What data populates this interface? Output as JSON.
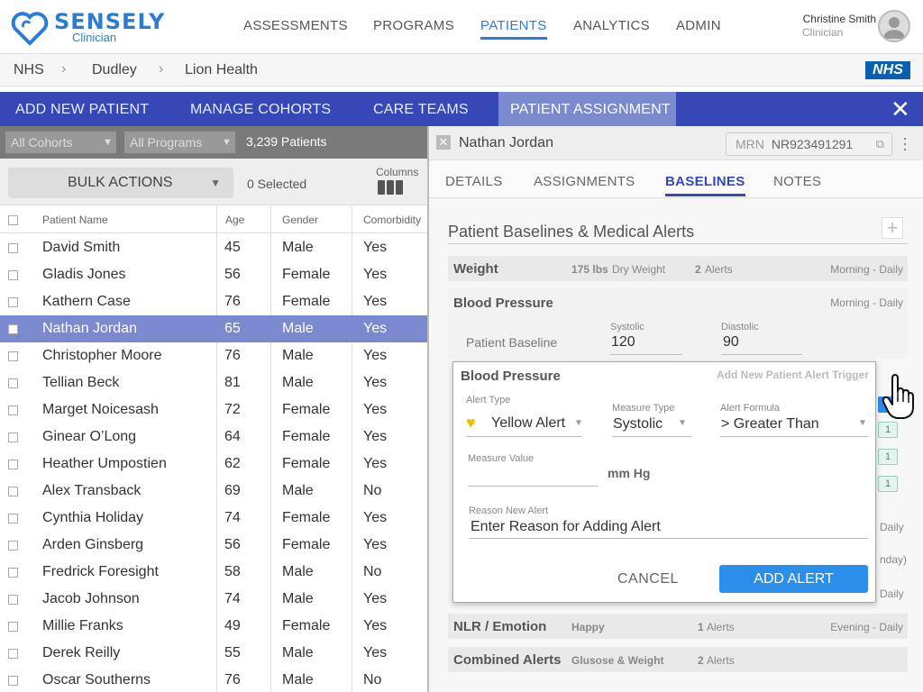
{
  "brand": {
    "name": "SENSELY",
    "sub": "Clinician",
    "color": "#2b7dd4"
  },
  "nav": {
    "items": [
      {
        "label": "ASSESSMENTS",
        "active": false
      },
      {
        "label": "PROGRAMS",
        "active": false
      },
      {
        "label": "PATIENTS",
        "active": true
      },
      {
        "label": "ANALYTICS",
        "active": false
      },
      {
        "label": "ADMIN",
        "active": false
      }
    ]
  },
  "user": {
    "name": "Christine Smith",
    "role": "Clinician"
  },
  "breadcrumb": [
    "NHS",
    "Dudley",
    "Lion Health"
  ],
  "nhs_logo": "NHS",
  "tabs": {
    "items": [
      "ADD NEW PATIENT",
      "MANAGE COHORTS",
      "CARE TEAMS",
      "PATIENT ASSIGNMENT"
    ],
    "active": "PATIENT ASSIGNMENT",
    "close_icon": "close-icon"
  },
  "filters": {
    "cohorts": "All Cohorts",
    "programs": "All Programs",
    "count": "3,239 Patients"
  },
  "bulk": {
    "label": "BULK ACTIONS",
    "selected": "0 Selected",
    "columns_label": "Columns"
  },
  "table": {
    "headers": [
      "Patient Name",
      "Age",
      "Gender",
      "Comorbidity"
    ],
    "rows": [
      {
        "name": "David Smith",
        "age": "45",
        "gender": "Male",
        "comorbidity": "Yes"
      },
      {
        "name": "Gladis Jones",
        "age": "56",
        "gender": "Female",
        "comorbidity": "Yes"
      },
      {
        "name": "Kathern Case",
        "age": "76",
        "gender": "Female",
        "comorbidity": "Yes"
      },
      {
        "name": "Nathan Jordan",
        "age": "65",
        "gender": "Male",
        "comorbidity": "Yes",
        "selected": true
      },
      {
        "name": "Christopher Moore",
        "age": "76",
        "gender": "Male",
        "comorbidity": "Yes"
      },
      {
        "name": "Tellian Beck",
        "age": "81",
        "gender": "Male",
        "comorbidity": "Yes"
      },
      {
        "name": "Marget Noicesash",
        "age": "72",
        "gender": "Female",
        "comorbidity": "Yes"
      },
      {
        "name": "Ginear O’Long",
        "age": "64",
        "gender": "Female",
        "comorbidity": "Yes"
      },
      {
        "name": "Heather Umpostien",
        "age": "62",
        "gender": "Female",
        "comorbidity": "Yes"
      },
      {
        "name": "Alex Transback",
        "age": "69",
        "gender": "Male",
        "comorbidity": "No"
      },
      {
        "name": "Cynthia Holiday",
        "age": "74",
        "gender": "Female",
        "comorbidity": "Yes"
      },
      {
        "name": "Arden Ginsberg",
        "age": "56",
        "gender": "Female",
        "comorbidity": "Yes"
      },
      {
        "name": "Fredrick Foresight",
        "age": "58",
        "gender": "Male",
        "comorbidity": "No"
      },
      {
        "name": "Jacob Johnson",
        "age": "74",
        "gender": "Male",
        "comorbidity": "Yes"
      },
      {
        "name": "Millie Franks",
        "age": "49",
        "gender": "Female",
        "comorbidity": "Yes"
      },
      {
        "name": "Derek Reilly",
        "age": "55",
        "gender": "Male",
        "comorbidity": "Yes"
      },
      {
        "name": "Oscar Southerns",
        "age": "76",
        "gender": "Male",
        "comorbidity": "No"
      }
    ]
  },
  "detail": {
    "name": "Nathan Jordan",
    "mrn_label": "MRN",
    "mrn": "NR923491291",
    "tabs": [
      "DETAILS",
      "ASSIGNMENTS",
      "BASELINES",
      "NOTES"
    ],
    "active_tab": "BASELINES",
    "section_title": "Patient Baselines & Medical Alerts",
    "weight": {
      "title": "Weight",
      "value": "175 lbs",
      "unit": "Dry Weight",
      "alerts_count": "2",
      "alerts_word": "Alerts",
      "schedule": "Morning - Daily"
    },
    "bp": {
      "title": "Blood Pressure",
      "schedule": "Morning - Daily",
      "baseline_label": "Patient Baseline",
      "systolic_label": "Systolic",
      "systolic": "120",
      "diastolic_label": "Diastolic",
      "diastolic": "90"
    },
    "nlr": {
      "title": "NLR / Emotion",
      "value": "Happy",
      "alerts_count": "1",
      "alerts_word": "Alerts",
      "schedule": "Evening - Daily"
    },
    "combined": {
      "title": "Combined Alerts",
      "value": "Glusose & Weight",
      "alerts_count": "2",
      "alerts_word": "Alerts"
    },
    "peek": {
      "daily1": "Daily",
      "nday": "nday)",
      "daily2": "Daily"
    },
    "side_stubs": [
      "1",
      "1",
      "1"
    ]
  },
  "popup": {
    "title": "Blood Pressure",
    "add_trigger": "Add New Patient Alert Trigger",
    "alert_type_label": "Alert Type",
    "alert_type": "Yellow Alert",
    "alert_color": "#e8c000",
    "measure_type_label": "Measure Type",
    "measure_type": "Systolic",
    "alert_formula_label": "Alert Formula",
    "alert_formula": "> Greater Than",
    "measure_value_label": "Measure Value",
    "measure_value_unit": "mm Hg",
    "reason_label": "Reason New Alert",
    "reason_placeholder": "Enter Reason for Adding Alert",
    "cancel": "CANCEL",
    "add": "ADD ALERT"
  }
}
